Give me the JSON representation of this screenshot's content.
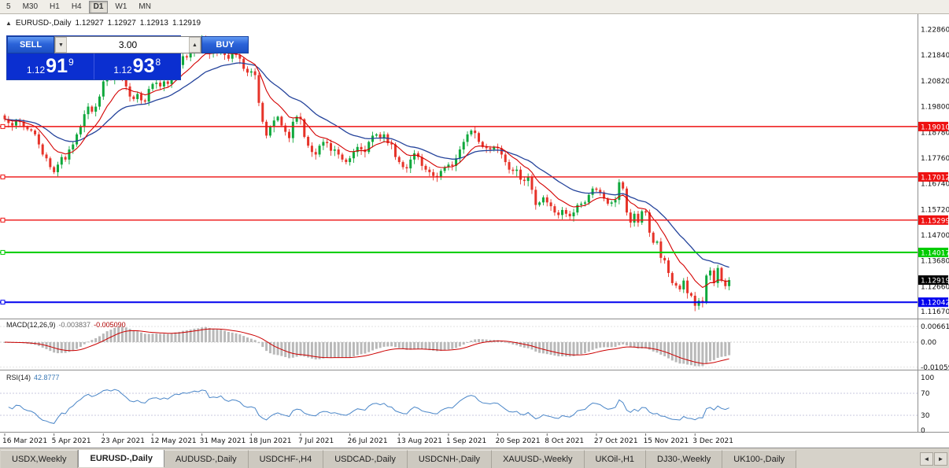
{
  "timeframe_bar": {
    "items": [
      {
        "label": "5",
        "active": false
      },
      {
        "label": "M30",
        "active": false
      },
      {
        "label": "H1",
        "active": false
      },
      {
        "label": "H4",
        "active": false
      },
      {
        "label": "D1",
        "active": true
      },
      {
        "label": "W1",
        "active": false
      },
      {
        "label": "MN",
        "active": false
      }
    ]
  },
  "chart_header": {
    "collapse_icon": "▲",
    "symbol": "EURUSD-,Daily",
    "open": "1.12927",
    "high": "1.12927",
    "low": "1.12913",
    "close": "1.12919"
  },
  "trade_panel": {
    "sell_label": "SELL",
    "buy_label": "BUY",
    "volume": "3.00",
    "spinner_down": "▼",
    "spinner_up": "▲",
    "sell_price_big": "1.12",
    "sell_price_pips": "91",
    "sell_price_sup": "9",
    "buy_price_big": "1.12",
    "buy_price_pips": "93",
    "buy_price_sup": "8"
  },
  "indicators": {
    "macd": {
      "name": "MACD(12,26,9)",
      "value_main": "-0.003837",
      "value_signal": "-0.005090",
      "axis_labels": [
        "0.006611",
        "0.00",
        "-0.010590"
      ],
      "histogram_color": "#b9b9b9",
      "signal_color": "#cc0000"
    },
    "rsi": {
      "name": "RSI(14)",
      "value": "42.8777",
      "axis_labels": [
        "100",
        "70",
        "30",
        "0"
      ],
      "levels": [
        70,
        30
      ],
      "line_color": "#4a86c8"
    }
  },
  "price_axis": {
    "labels": [
      "1.22860",
      "1.21840",
      "1.20820",
      "1.19800",
      "1.18780",
      "1.17760",
      "1.16740",
      "1.15720",
      "1.14700",
      "1.13680",
      "1.12660",
      "1.11670"
    ],
    "current_price": {
      "value": "1.12919",
      "color": "#000000"
    }
  },
  "levels": [
    {
      "price": 1.1901,
      "label": "1.19010",
      "color": "#ee1111",
      "width": 1.4
    },
    {
      "price": 1.17012,
      "label": "1.17012",
      "color": "#ee1111",
      "width": 1.4
    },
    {
      "price": 1.15299,
      "label": "1.15299",
      "color": "#ee1111",
      "width": 1.4
    },
    {
      "price": 1.14017,
      "label": "1.14017",
      "color": "#00cc00",
      "width": 2
    },
    {
      "price": 1.12042,
      "label": "1.12042",
      "color": "#0000ee",
      "width": 2
    }
  ],
  "chart_data": {
    "type": "candlestick",
    "symbol": "EURUSD-",
    "timeframe": "Daily",
    "up_color": "#0fa83c",
    "down_color": "#e63329",
    "ma_fast_color": "#d40000",
    "ma_slow_color": "#24439b",
    "first_open": 1.1945,
    "closes": [
      1.193,
      1.1915,
      1.1905,
      1.1922,
      1.192,
      1.19,
      1.189,
      1.1885,
      1.187,
      1.183,
      1.179,
      1.1775,
      1.174,
      1.172,
      1.175,
      1.178,
      1.177,
      1.181,
      1.183,
      1.187,
      1.19,
      1.195,
      1.198,
      1.196,
      1.198,
      1.202,
      1.208,
      1.21,
      1.209,
      1.213,
      1.212,
      1.209,
      1.206,
      1.202,
      1.201,
      1.203,
      1.2005,
      1.2,
      1.205,
      1.207,
      1.2075,
      1.206,
      1.208,
      1.207,
      1.211,
      1.215,
      1.2145,
      1.218,
      1.2175,
      1.2195,
      1.222,
      1.2215,
      1.225,
      1.2245,
      1.219,
      1.22,
      1.2195,
      1.222,
      1.2185,
      1.217,
      1.219,
      1.2185,
      1.217,
      1.213,
      1.2115,
      1.212,
      1.2105,
      1.1995,
      1.192,
      1.1865,
      1.19,
      1.1925,
      1.194,
      1.1905,
      1.188,
      1.1855,
      1.192,
      1.194,
      1.193,
      1.186,
      1.1825,
      1.18,
      1.179,
      1.1825,
      1.184,
      1.1835,
      1.1805,
      1.181,
      1.179,
      1.177,
      1.176,
      1.1775,
      1.18,
      1.182,
      1.181,
      1.18,
      1.184,
      1.1865,
      1.187,
      1.1855,
      1.187,
      1.1835,
      1.183,
      1.178,
      1.176,
      1.174,
      1.1735,
      1.177,
      1.1795,
      1.178,
      1.1745,
      1.173,
      1.172,
      1.1705,
      1.17,
      1.1725,
      1.174,
      1.175,
      1.1745,
      1.1775,
      1.181,
      1.184,
      1.187,
      1.1885,
      1.1875,
      1.184,
      1.182,
      1.1815,
      1.181,
      1.182,
      1.1815,
      1.179,
      1.176,
      1.173,
      1.1725,
      1.173,
      1.169,
      1.1685,
      1.17,
      1.165,
      1.159,
      1.16,
      1.162,
      1.16,
      1.1585,
      1.156,
      1.155,
      1.157,
      1.1555,
      1.1545,
      1.156,
      1.159,
      1.1595,
      1.16,
      1.163,
      1.1655,
      1.165,
      1.164,
      1.1615,
      1.1595,
      1.16,
      1.161,
      1.168,
      1.1655,
      1.156,
      1.152,
      1.1555,
      1.152,
      1.1565,
      1.156,
      1.148,
      1.144,
      1.1445,
      1.138,
      1.137,
      1.132,
      1.128,
      1.127,
      1.1255,
      1.129,
      1.124,
      1.123,
      1.119,
      1.121,
      1.1205,
      1.131,
      1.133,
      1.128,
      1.134,
      1.129,
      1.1268,
      1.1292
    ],
    "x_labels": [
      {
        "idx": 0,
        "label": "16 Mar 2021"
      },
      {
        "idx": 13,
        "label": "5 Apr 2021"
      },
      {
        "idx": 26,
        "label": "23 Apr 2021"
      },
      {
        "idx": 39,
        "label": "12 May 2021"
      },
      {
        "idx": 52,
        "label": "31 May 2021"
      },
      {
        "idx": 65,
        "label": "18 Jun 2021"
      },
      {
        "idx": 78,
        "label": "7 Jul 2021"
      },
      {
        "idx": 91,
        "label": "26 Jul 2021"
      },
      {
        "idx": 104,
        "label": "13 Aug 2021"
      },
      {
        "idx": 117,
        "label": "1 Sep 2021"
      },
      {
        "idx": 130,
        "label": "20 Sep 2021"
      },
      {
        "idx": 143,
        "label": "8 Oct 2021"
      },
      {
        "idx": 156,
        "label": "27 Oct 2021"
      },
      {
        "idx": 169,
        "label": "15 Nov 2021"
      },
      {
        "idx": 182,
        "label": "3 Dec 2021"
      }
    ]
  },
  "tabs": {
    "items": [
      {
        "label": "USDX,Weekly",
        "active": false
      },
      {
        "label": "EURUSD-,Daily",
        "active": true
      },
      {
        "label": "AUDUSD-,Daily",
        "active": false
      },
      {
        "label": "USDCHF-,H4",
        "active": false
      },
      {
        "label": "USDCAD-,Daily",
        "active": false
      },
      {
        "label": "USDCNH-,Daily",
        "active": false
      },
      {
        "label": "XAUUSD-,Weekly",
        "active": false
      },
      {
        "label": "UKOil-,H1",
        "active": false
      },
      {
        "label": "DJ30-,Weekly",
        "active": false
      },
      {
        "label": "UK100-,Daily",
        "active": false
      }
    ],
    "scroll_left": "◄",
    "scroll_right": "►"
  }
}
